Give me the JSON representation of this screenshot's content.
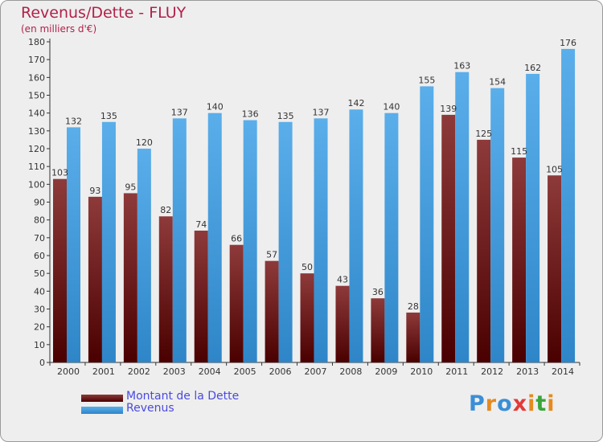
{
  "title": "Revenus/Dette - FLUY",
  "subtitle": "(en milliers d'€)",
  "legend": [
    {
      "label": "Montant de la Dette",
      "color": "#6b0f12"
    },
    {
      "label": "Revenus",
      "color": "#4aa3e0"
    }
  ],
  "logo": {
    "text": "Proxiti",
    "colors": [
      "#3a8fd6",
      "#e58a1f",
      "#3a8fd6",
      "#e23a3a",
      "#e58a1f",
      "#3aa53a",
      "#e58a1f"
    ]
  },
  "chart_data": {
    "type": "bar",
    "categories": [
      "2000",
      "2001",
      "2002",
      "2003",
      "2004",
      "2005",
      "2006",
      "2007",
      "2008",
      "2009",
      "2010",
      "2011",
      "2012",
      "2013",
      "2014"
    ],
    "series": [
      {
        "name": "Montant de la Dette",
        "color": "#6b0f12",
        "values": [
          103,
          93,
          95,
          82,
          74,
          66,
          57,
          50,
          43,
          36,
          28,
          139,
          125,
          115,
          105
        ]
      },
      {
        "name": "Revenus",
        "color": "#4aa3e0",
        "values": [
          132,
          135,
          120,
          137,
          140,
          136,
          135,
          137,
          142,
          140,
          155,
          163,
          154,
          162,
          176
        ]
      }
    ],
    "ylim": [
      0,
      180
    ],
    "ytick_step": 10,
    "grid": false,
    "legend_position": "bottom-left"
  }
}
